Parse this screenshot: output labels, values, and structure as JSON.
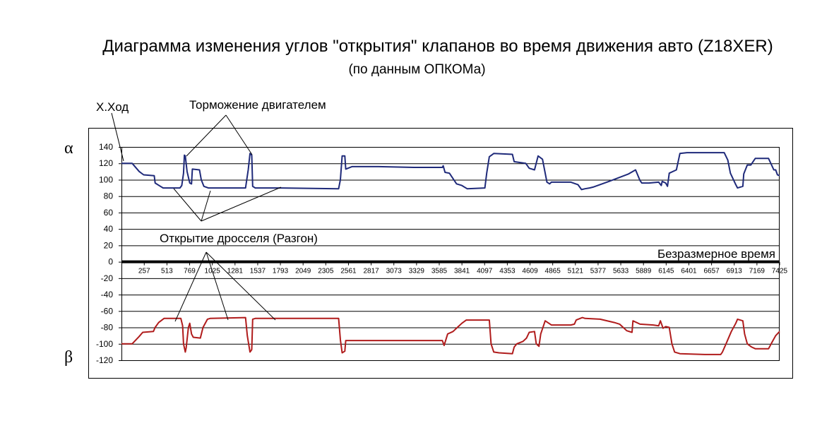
{
  "title": "Диаграмма изменения углов \"открытия\" клапанов во время движения авто (Z18XER)",
  "subtitle": "(по данным ОПКОМа)",
  "greek": {
    "alpha": "α",
    "beta": "β"
  },
  "annotations": {
    "idle": "Х.Ход",
    "braking": "Торможение двигателем",
    "throttle": "Открытие дросселя (Разгон)",
    "time_axis": "Безразмерное время"
  },
  "colors": {
    "alpha": "#1f2a7a",
    "beta": "#b01c1c"
  },
  "chart_data": {
    "type": "line",
    "xlabel": "Безразмерное время",
    "x_range": [
      0,
      7425
    ],
    "ylim": [
      -120,
      140
    ],
    "grid": true,
    "y_ticks": [
      140,
      120,
      100,
      80,
      60,
      40,
      20,
      0,
      -20,
      -40,
      -60,
      -80,
      -100,
      -120
    ],
    "x_ticks": [
      257,
      513,
      769,
      1025,
      1281,
      1537,
      1793,
      2049,
      2305,
      2561,
      2817,
      3073,
      3329,
      3585,
      3841,
      4097,
      4353,
      4609,
      4865,
      5121,
      5377,
      5633,
      5889,
      6145,
      6401,
      6657,
      6913,
      7169,
      7425
    ],
    "series": [
      {
        "name": "α",
        "points": [
          [
            0,
            120
          ],
          [
            120,
            120
          ],
          [
            200,
            110
          ],
          [
            250,
            106
          ],
          [
            370,
            105
          ],
          [
            380,
            96
          ],
          [
            440,
            92
          ],
          [
            470,
            90
          ],
          [
            660,
            90
          ],
          [
            680,
            93
          ],
          [
            700,
            108
          ],
          [
            710,
            130
          ],
          [
            720,
            129
          ],
          [
            740,
            110
          ],
          [
            770,
            96
          ],
          [
            790,
            95
          ],
          [
            800,
            113
          ],
          [
            880,
            112
          ],
          [
            900,
            100
          ],
          [
            930,
            92
          ],
          [
            980,
            90
          ],
          [
            1400,
            90
          ],
          [
            1430,
            112
          ],
          [
            1450,
            132
          ],
          [
            1470,
            130
          ],
          [
            1480,
            92
          ],
          [
            1510,
            90
          ],
          [
            1800,
            90
          ],
          [
            2450,
            89
          ],
          [
            2470,
            100
          ],
          [
            2490,
            129
          ],
          [
            2520,
            129
          ],
          [
            2530,
            113
          ],
          [
            2600,
            116
          ],
          [
            2900,
            116
          ],
          [
            3300,
            115
          ],
          [
            3620,
            115
          ],
          [
            3630,
            117
          ],
          [
            3650,
            109
          ],
          [
            3700,
            108
          ],
          [
            3780,
            95
          ],
          [
            3840,
            93
          ],
          [
            3900,
            89
          ],
          [
            4100,
            90
          ],
          [
            4120,
            108
          ],
          [
            4150,
            128
          ],
          [
            4200,
            132
          ],
          [
            4410,
            131
          ],
          [
            4430,
            122
          ],
          [
            4560,
            120
          ],
          [
            4600,
            114
          ],
          [
            4660,
            112
          ],
          [
            4700,
            129
          ],
          [
            4750,
            125
          ],
          [
            4800,
            97
          ],
          [
            4830,
            95
          ],
          [
            4850,
            97
          ],
          [
            5070,
            97
          ],
          [
            5150,
            94
          ],
          [
            5190,
            88
          ],
          [
            5230,
            89
          ],
          [
            5280,
            90
          ],
          [
            5320,
            91
          ],
          [
            5500,
            98
          ],
          [
            5720,
            107
          ],
          [
            5800,
            112
          ],
          [
            5850,
            99
          ],
          [
            5870,
            96
          ],
          [
            5950,
            96
          ],
          [
            6060,
            97
          ],
          [
            6090,
            93
          ],
          [
            6100,
            98
          ],
          [
            6140,
            96
          ],
          [
            6160,
            92
          ],
          [
            6180,
            108
          ],
          [
            6260,
            112
          ],
          [
            6300,
            132
          ],
          [
            6380,
            133
          ],
          [
            6600,
            133
          ],
          [
            6800,
            133
          ],
          [
            6840,
            124
          ],
          [
            6870,
            108
          ],
          [
            6930,
            94
          ],
          [
            6950,
            90
          ],
          [
            7010,
            92
          ],
          [
            7020,
            107
          ],
          [
            7060,
            118
          ],
          [
            7100,
            118
          ],
          [
            7150,
            126
          ],
          [
            7300,
            126
          ],
          [
            7360,
            112
          ],
          [
            7380,
            112
          ],
          [
            7400,
            106
          ],
          [
            7425,
            105
          ]
        ]
      },
      {
        "name": "β",
        "points": [
          [
            0,
            -100
          ],
          [
            120,
            -100
          ],
          [
            200,
            -91
          ],
          [
            240,
            -86
          ],
          [
            360,
            -85
          ],
          [
            380,
            -80
          ],
          [
            420,
            -74
          ],
          [
            480,
            -69
          ],
          [
            670,
            -69
          ],
          [
            690,
            -78
          ],
          [
            700,
            -100
          ],
          [
            720,
            -110
          ],
          [
            730,
            -105
          ],
          [
            755,
            -80
          ],
          [
            770,
            -75
          ],
          [
            790,
            -88
          ],
          [
            810,
            -92
          ],
          [
            890,
            -93
          ],
          [
            920,
            -80
          ],
          [
            970,
            -70
          ],
          [
            1000,
            -69
          ],
          [
            1400,
            -68
          ],
          [
            1420,
            -90
          ],
          [
            1450,
            -110
          ],
          [
            1470,
            -107
          ],
          [
            1480,
            -70
          ],
          [
            1510,
            -69
          ],
          [
            2450,
            -69
          ],
          [
            2470,
            -95
          ],
          [
            2490,
            -111
          ],
          [
            2520,
            -109
          ],
          [
            2530,
            -96
          ],
          [
            2600,
            -96
          ],
          [
            3200,
            -96
          ],
          [
            3620,
            -96
          ],
          [
            3640,
            -102
          ],
          [
            3680,
            -88
          ],
          [
            3740,
            -85
          ],
          [
            3790,
            -80
          ],
          [
            3840,
            -75
          ],
          [
            3890,
            -71
          ],
          [
            4150,
            -71
          ],
          [
            4170,
            -100
          ],
          [
            4200,
            -110
          ],
          [
            4260,
            -111
          ],
          [
            4410,
            -112
          ],
          [
            4430,
            -104
          ],
          [
            4460,
            -100
          ],
          [
            4530,
            -97
          ],
          [
            4570,
            -93
          ],
          [
            4600,
            -86
          ],
          [
            4660,
            -85
          ],
          [
            4680,
            -100
          ],
          [
            4710,
            -103
          ],
          [
            4730,
            -88
          ],
          [
            4780,
            -72
          ],
          [
            4850,
            -77
          ],
          [
            5070,
            -77
          ],
          [
            5110,
            -76
          ],
          [
            5130,
            -71
          ],
          [
            5200,
            -68
          ],
          [
            5230,
            -69
          ],
          [
            5400,
            -70
          ],
          [
            5560,
            -74
          ],
          [
            5620,
            -76
          ],
          [
            5700,
            -84
          ],
          [
            5760,
            -86
          ],
          [
            5770,
            -72
          ],
          [
            5850,
            -76
          ],
          [
            6000,
            -77
          ],
          [
            6060,
            -78
          ],
          [
            6080,
            -72
          ],
          [
            6110,
            -81
          ],
          [
            6140,
            -79
          ],
          [
            6180,
            -80
          ],
          [
            6210,
            -100
          ],
          [
            6240,
            -110
          ],
          [
            6300,
            -112
          ],
          [
            6580,
            -113
          ],
          [
            6760,
            -113
          ],
          [
            6780,
            -110
          ],
          [
            6820,
            -100
          ],
          [
            6880,
            -85
          ],
          [
            6930,
            -75
          ],
          [
            6950,
            -70
          ],
          [
            7010,
            -72
          ],
          [
            7030,
            -88
          ],
          [
            7060,
            -100
          ],
          [
            7110,
            -104
          ],
          [
            7150,
            -106
          ],
          [
            7300,
            -106
          ],
          [
            7340,
            -98
          ],
          [
            7380,
            -90
          ],
          [
            7425,
            -85
          ]
        ]
      }
    ]
  }
}
